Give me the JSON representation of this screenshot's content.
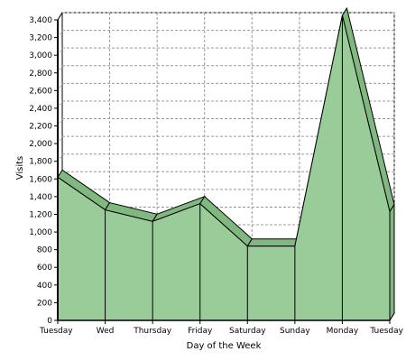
{
  "chart_data": {
    "type": "area",
    "style": "3d",
    "categories": [
      "Tuesday",
      "Wed",
      "Thursday",
      "Friday",
      "Saturday",
      "Sunday",
      "Monday",
      "Tuesday"
    ],
    "series": [
      {
        "values": [
          1620,
          1250,
          1120,
          1320,
          840,
          840,
          3450,
          1230
        ]
      }
    ],
    "xlabel": "Day of the Week",
    "ylabel": "Visits",
    "ylim": [
      0,
      3400
    ],
    "ytick_step": 200,
    "yticks": [
      "0",
      "200",
      "400",
      "600",
      "800",
      "1,000",
      "1,200",
      "1,400",
      "1,600",
      "1,800",
      "2,000",
      "2,200",
      "2,400",
      "2,600",
      "2,800",
      "3,000",
      "3,200",
      "3,400"
    ],
    "grid": true,
    "legend": "none",
    "colors": {
      "fill": "#99cc99",
      "top_face": "#80b880",
      "outline": "#000000",
      "grid": "#999999",
      "background": "#ffffff"
    }
  }
}
